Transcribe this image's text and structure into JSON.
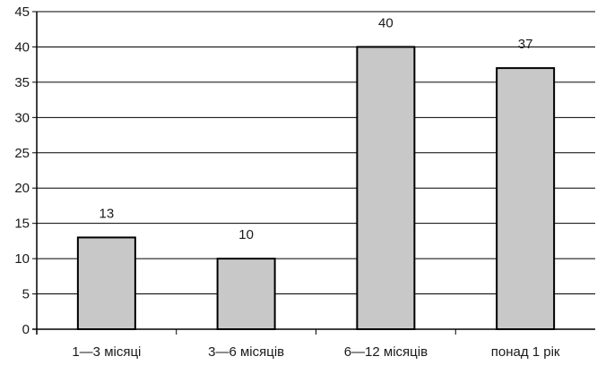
{
  "chart_data": {
    "type": "bar",
    "categories": [
      "1—3 місяці",
      "3—6 місяців",
      "6—12 місяців",
      "понад 1 рік"
    ],
    "values": [
      13,
      10,
      40,
      37
    ],
    "data_labels": [
      "13",
      "10",
      "40",
      "37"
    ],
    "ylim": [
      0,
      45
    ],
    "yticks": [
      0,
      5,
      10,
      15,
      20,
      25,
      30,
      35,
      40,
      45
    ],
    "ytick_labels": [
      "0",
      "5",
      "10",
      "15",
      "20",
      "25",
      "30",
      "35",
      "40",
      "45"
    ],
    "grid": "horizontal",
    "legend": "none",
    "colors": {
      "bar_fill": "#c8c8c8",
      "bar_stroke": "#000000",
      "grid": "#000000",
      "axis": "#000000"
    }
  }
}
